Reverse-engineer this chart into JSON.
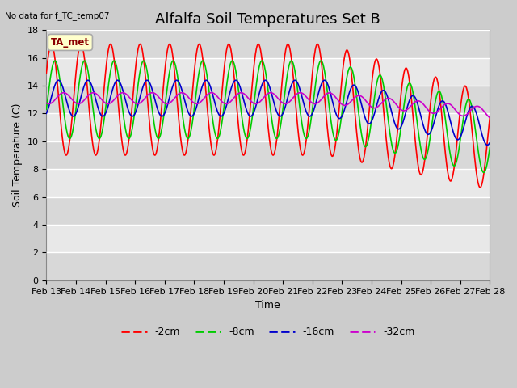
{
  "title": "Alfalfa Soil Temperatures Set B",
  "subtitle": "No data for f_TC_temp07",
  "xlabel": "Time",
  "ylabel": "Soil Temperature (C)",
  "ylim": [
    0,
    18
  ],
  "yticks": [
    0,
    2,
    4,
    6,
    8,
    10,
    12,
    14,
    16,
    18
  ],
  "legend_entries": [
    "-2cm",
    "-8cm",
    "-16cm",
    "-32cm"
  ],
  "legend_colors": [
    "#ff0000",
    "#00cc00",
    "#0000cc",
    "#cc00cc"
  ],
  "x_labels": [
    "Feb 13",
    "Feb 14",
    "Feb 15",
    "Feb 16",
    "Feb 17",
    "Feb 18",
    "Feb 19",
    "Feb 20",
    "Feb 21",
    "Feb 22",
    "Feb 23",
    "Feb 24",
    "Feb 25",
    "Feb 26",
    "Feb 27",
    "Feb 28"
  ],
  "annotation_text": "TA_met",
  "title_fontsize": 13,
  "label_fontsize": 9,
  "tick_fontsize": 8
}
